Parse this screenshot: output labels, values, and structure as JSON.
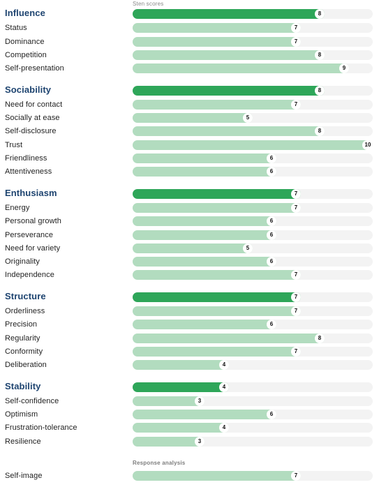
{
  "axis_caption": "Sten scores",
  "max_score": 10,
  "colors": {
    "category_bar": "#2ea659",
    "scale_bar": "#b2dcbf",
    "track": "#f3f3f3",
    "category_title": "#1e4470"
  },
  "sections": [
    {
      "name": "Influence",
      "score": 8,
      "scales": [
        {
          "name": "Status",
          "score": 7
        },
        {
          "name": "Dominance",
          "score": 7
        },
        {
          "name": "Competition",
          "score": 8
        },
        {
          "name": "Self-presentation",
          "score": 9
        }
      ]
    },
    {
      "name": "Sociability",
      "score": 8,
      "scales": [
        {
          "name": "Need for contact",
          "score": 7
        },
        {
          "name": "Socially at ease",
          "score": 5
        },
        {
          "name": "Self-disclosure",
          "score": 8
        },
        {
          "name": "Trust",
          "score": 10
        },
        {
          "name": "Friendliness",
          "score": 6
        },
        {
          "name": "Attentiveness",
          "score": 6
        }
      ]
    },
    {
      "name": "Enthusiasm",
      "score": 7,
      "scales": [
        {
          "name": "Energy",
          "score": 7
        },
        {
          "name": "Personal growth",
          "score": 6
        },
        {
          "name": "Perseverance",
          "score": 6
        },
        {
          "name": "Need for variety",
          "score": 5
        },
        {
          "name": "Originality",
          "score": 6
        },
        {
          "name": "Independence",
          "score": 7
        }
      ]
    },
    {
      "name": "Structure",
      "score": 7,
      "scales": [
        {
          "name": "Orderliness",
          "score": 7
        },
        {
          "name": "Precision",
          "score": 6
        },
        {
          "name": "Regularity",
          "score": 8
        },
        {
          "name": "Conformity",
          "score": 7
        },
        {
          "name": "Deliberation",
          "score": 4
        }
      ]
    },
    {
      "name": "Stability",
      "score": 4,
      "scales": [
        {
          "name": "Self-confidence",
          "score": 3
        },
        {
          "name": "Optimism",
          "score": 6
        },
        {
          "name": "Frustration-tolerance",
          "score": 4
        },
        {
          "name": "Resilience",
          "score": 3
        }
      ]
    }
  ],
  "response_analysis": {
    "caption": "Response analysis",
    "items": [
      {
        "name": "Self-image",
        "score": 7
      }
    ]
  }
}
